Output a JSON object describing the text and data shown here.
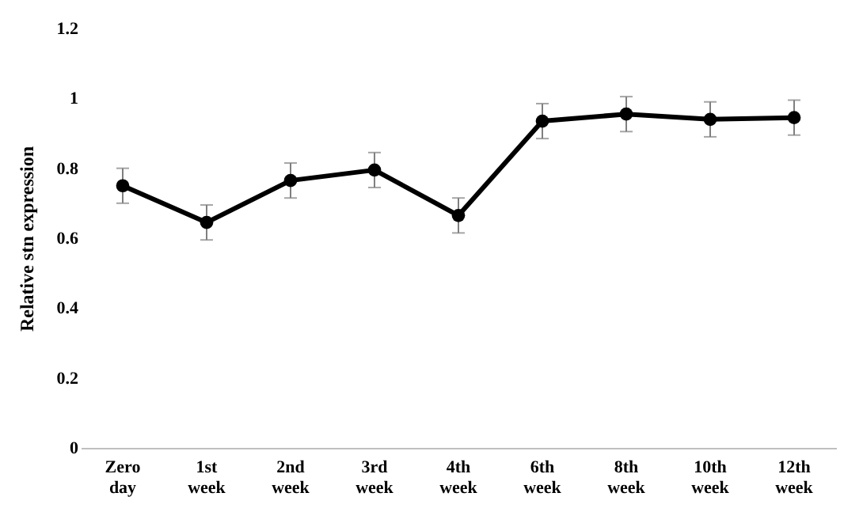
{
  "chart_data": {
    "type": "line",
    "ylabel": "Relative stn expression",
    "categories": [
      "Zero day",
      "1st week",
      "2nd week",
      "3rd week",
      "4th week",
      "6th week",
      "8th week",
      "10th week",
      "12th week"
    ],
    "series": [
      {
        "color": "#000000",
        "values": [
          0.75,
          0.645,
          0.765,
          0.795,
          0.665,
          0.935,
          0.955,
          0.94,
          0.945
        ],
        "errors": [
          0.05,
          0.05,
          0.05,
          0.05,
          0.05,
          0.05,
          0.05,
          0.05,
          0.05
        ]
      }
    ],
    "ylim": [
      0,
      1.2
    ],
    "yticks": [
      0,
      0.2,
      0.4,
      0.6,
      0.8,
      1,
      1.2
    ],
    "grid": false,
    "marker": "circle",
    "line_style": "solid"
  }
}
